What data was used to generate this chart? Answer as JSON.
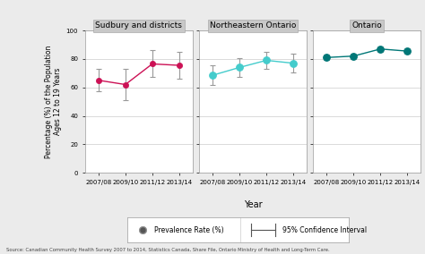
{
  "panels": [
    {
      "title": "Sudbury and districts",
      "line_color": "#CC1155",
      "marker_color": "#CC1155",
      "marker_face": "#CC1155",
      "years": [
        "2007/08",
        "2009/10",
        "2011/12",
        "2013/14"
      ],
      "values": [
        65.0,
        62.0,
        76.5,
        75.5
      ],
      "ci_low": [
        57.0,
        51.0,
        67.5,
        66.0
      ],
      "ci_high": [
        73.0,
        73.0,
        86.0,
        85.0
      ],
      "ci_color": "#999999"
    },
    {
      "title": "Northeastern Ontario",
      "line_color": "#44CCCC",
      "marker_color": "#44CCCC",
      "marker_face": "#44CCCC",
      "years": [
        "2007/08",
        "2009/10",
        "2011/12",
        "2013/14"
      ],
      "values": [
        68.5,
        74.0,
        79.0,
        77.0
      ],
      "ci_low": [
        62.0,
        67.5,
        73.0,
        70.5
      ],
      "ci_high": [
        75.5,
        80.5,
        85.0,
        83.5
      ],
      "ci_color": "#999999"
    },
    {
      "title": "Ontario",
      "line_color": "#007777",
      "marker_color": "#007777",
      "marker_face": "#007777",
      "years": [
        "2007/08",
        "2009/10",
        "2011/12",
        "2013/14"
      ],
      "values": [
        81.0,
        82.0,
        87.0,
        85.5
      ],
      "ci_low": [
        79.0,
        80.0,
        85.0,
        83.5
      ],
      "ci_high": [
        83.0,
        84.0,
        89.0,
        87.5
      ],
      "ci_color": "#999999"
    }
  ],
  "ylabel": "Percentage (%) of the Population\nAges 12 to 19 Years",
  "xlabel": "Year",
  "ylim": [
    0,
    100
  ],
  "yticks": [
    0,
    20,
    40,
    60,
    80,
    100
  ],
  "background_color": "#ebebeb",
  "plot_bg_color": "#ffffff",
  "source_text": "Source: Canadian Community Health Survey 2007 to 2014, Statistics Canada, Share File, Ontario Ministry of Health and Long-Term Care.",
  "legend_label1": "Prevalence Rate (%)",
  "legend_label2": "95% Confidence Interval",
  "header_color": "#c8c8c8"
}
